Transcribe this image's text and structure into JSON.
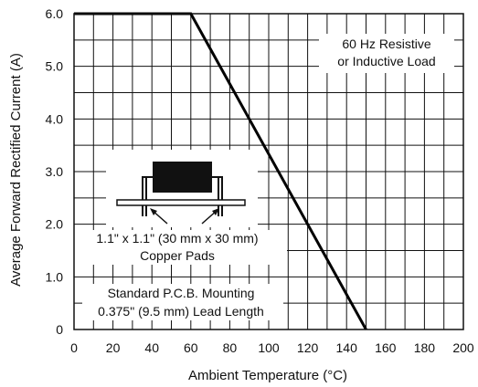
{
  "chart_data": {
    "type": "line",
    "xlabel": "Ambient Temperature (°C)",
    "ylabel": "Average Forward Rectified Current (A)",
    "xlim": [
      0,
      200
    ],
    "ylim": [
      0,
      6.0
    ],
    "grid": true,
    "x_ticks": [
      "0",
      "20",
      "40",
      "60",
      "80",
      "100",
      "120",
      "140",
      "160",
      "180",
      "200"
    ],
    "y_ticks": [
      "0",
      "1.0",
      "2.0",
      "3.0",
      "4.0",
      "5.0",
      "6.0"
    ],
    "series": [
      {
        "x": [
          0,
          60,
          150
        ],
        "y": [
          6.0,
          6.0,
          0
        ]
      }
    ],
    "annotations": {
      "load": [
        "60 Hz Resistive",
        "or Inductive Load"
      ],
      "pads": [
        "1.1\" x 1.1\" (30 mm x 30 mm)",
        "Copper Pads"
      ],
      "mounting": [
        "Standard P.C.B. Mounting",
        "0.375\" (9.5 mm) Lead Length"
      ]
    }
  }
}
